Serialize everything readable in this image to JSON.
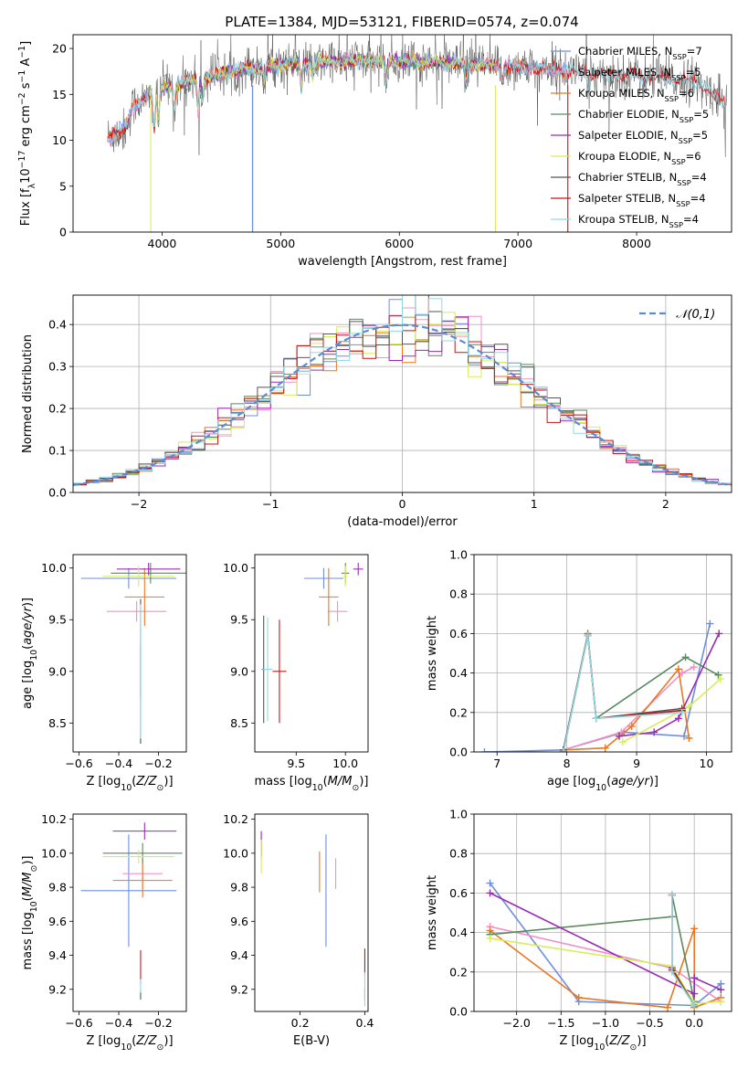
{
  "figure_title": "PLATE=1384, MJD=53121, FIBERID=0574, z=0.074",
  "colors": {
    "chabrier_miles": "#6d8ee0",
    "salpeter_miles": "#f28fc4",
    "kroupa_miles": "#e87722",
    "chabrier_elodie": "#5a8a5e",
    "salpeter_elodie": "#9a2bb5",
    "kroupa_elodie": "#d6ee5a",
    "chabrier_stelib": "#555555",
    "salpeter_stelib": "#c81414",
    "kroupa_stelib": "#8fd8e6",
    "gauss": "#5b8bd6"
  },
  "chart_data": [
    {
      "id": "spectrum",
      "type": "line",
      "xlabel": "wavelength [Angstrom, rest frame]",
      "ylabel": "Flux [f_λ10^−17 erg cm^−2 s^−1 A^−1]",
      "xlim": [
        3250,
        8800
      ],
      "ylim": [
        0,
        21.5
      ],
      "xticks": [
        4000,
        5000,
        6000,
        7000,
        8000
      ],
      "yticks": [
        0,
        5,
        10,
        15,
        20
      ],
      "legend_location": "right",
      "legend": [
        "Chabrier MILES, N_SSP=7",
        "Salpeter MILES, N_SSP=5",
        "Kroupa MILES, N_SSP=6",
        "Chabrier ELODIE, N_SSP=5",
        "Salpeter ELODIE, N_SSP=5",
        "Kroupa ELODIE, N_SSP=6",
        "Chabrier STELIB, N_SSP=4",
        "Salpeter STELIB, N_SSP=4",
        "Kroupa STELIB, N_SSP=4"
      ],
      "continuum": [
        [
          3550,
          10.2
        ],
        [
          3700,
          11.5
        ],
        [
          3750,
          13.5
        ],
        [
          3950,
          15.5
        ],
        [
          4100,
          16.0
        ],
        [
          4400,
          17.0
        ],
        [
          4700,
          17.8
        ],
        [
          5000,
          18.3
        ],
        [
          5300,
          18.5
        ],
        [
          5600,
          18.6
        ],
        [
          6000,
          18.6
        ],
        [
          6500,
          18.4
        ],
        [
          7000,
          18.0
        ],
        [
          7400,
          17.6
        ],
        [
          8000,
          17.0
        ],
        [
          8500,
          16.4
        ],
        [
          8750,
          14.0
        ]
      ]
    },
    {
      "id": "residuals",
      "type": "histogram",
      "xlabel": "(data-model)/error",
      "ylabel": "Normed distribution",
      "xlim": [
        -2.5,
        2.5
      ],
      "ylim": [
        0,
        0.47
      ],
      "xticks": [
        -2,
        -1,
        0,
        1,
        2
      ],
      "yticks": [
        0.0,
        0.1,
        0.2,
        0.3,
        0.4
      ],
      "legend": [
        "𝒩(0,1)"
      ],
      "legend_location": "top-right",
      "grid": true,
      "bin_start": -2.5,
      "bin_width": 0.1
    },
    {
      "id": "age_vs_Z",
      "type": "errorbar",
      "xlabel": "Z [log10(Z/Z⊙)]",
      "ylabel": "age  [log10(age/yr)]",
      "xlim": [
        -0.63,
        -0.06
      ],
      "ylim": [
        8.22,
        10.13
      ],
      "xticks": [
        -0.6,
        -0.4,
        -0.2
      ],
      "yticks": [
        8.5,
        9.0,
        9.5,
        10.0
      ],
      "points": [
        {
          "c": "chabrier_miles",
          "x": -0.35,
          "xe": 0.24,
          "y": 9.9,
          "ye": 0.1
        },
        {
          "c": "salpeter_miles",
          "x": -0.31,
          "xe": 0.15,
          "y": 9.58,
          "ye": 0.1
        },
        {
          "c": "kroupa_miles",
          "x": -0.27,
          "xe": 0.1,
          "y": 9.72,
          "ye": 0.28
        },
        {
          "c": "chabrier_elodie",
          "x": -0.24,
          "xe": 0.2,
          "y": 9.95,
          "ye": 0.1
        },
        {
          "c": "salpeter_elodie",
          "x": -0.25,
          "xe": 0.16,
          "y": 9.99,
          "ye": 0.06
        },
        {
          "c": "kroupa_elodie",
          "x": -0.3,
          "xe": 0.18,
          "y": 9.92,
          "ye": 0.1
        },
        {
          "c": "chabrier_stelib",
          "x": -0.29,
          "xe": 0.0,
          "y": 9.0,
          "ye": 0.7
        },
        {
          "c": "salpeter_stelib",
          "x": -0.29,
          "xe": 0.0,
          "y": 9.0,
          "ye": 0.25
        },
        {
          "c": "kroupa_stelib",
          "x": -0.29,
          "xe": 0.0,
          "y": 9.0,
          "ye": 0.65
        }
      ]
    },
    {
      "id": "age_vs_mass",
      "type": "errorbar",
      "xlabel": "mass [log10(M/M⊙)]",
      "ylabel": "",
      "xlim": [
        9.08,
        10.23
      ],
      "ylim": [
        8.22,
        10.13
      ],
      "xticks": [
        9.5,
        10.0
      ],
      "yticks": [
        8.5,
        9.0,
        9.5,
        10.0
      ],
      "points": [
        {
          "c": "chabrier_miles",
          "x": 9.78,
          "xe": 0.2,
          "y": 9.9,
          "ye": 0.1
        },
        {
          "c": "salpeter_miles",
          "x": 9.92,
          "xe": 0.1,
          "y": 9.58,
          "ye": 0.1
        },
        {
          "c": "kroupa_miles",
          "x": 9.83,
          "xe": 0.1,
          "y": 9.72,
          "ye": 0.28
        },
        {
          "c": "chabrier_elodie",
          "x": 10.0,
          "xe": 0.04,
          "y": 9.95,
          "ye": 0.1
        },
        {
          "c": "salpeter_elodie",
          "x": 10.13,
          "xe": 0.05,
          "y": 9.99,
          "ye": 0.06
        },
        {
          "c": "kroupa_elodie",
          "x": 10.0,
          "xe": 0.02,
          "y": 9.92,
          "ye": 0.1
        },
        {
          "c": "chabrier_stelib",
          "x": 9.17,
          "xe": 0.02,
          "y": 9.02,
          "ye": 0.52
        },
        {
          "c": "salpeter_stelib",
          "x": 9.33,
          "xe": 0.07,
          "y": 9.0,
          "ye": 0.5
        },
        {
          "c": "kroupa_stelib",
          "x": 9.21,
          "xe": 0.05,
          "y": 9.02,
          "ye": 0.5
        }
      ]
    },
    {
      "id": "weight_vs_age",
      "type": "line",
      "xlabel": "age  [log10(age/yr)]",
      "ylabel": "mass weight",
      "xlim": [
        6.67,
        10.36
      ],
      "ylim": [
        0,
        1.0
      ],
      "xticks": [
        7,
        8,
        9,
        10
      ],
      "yticks": [
        0.0,
        0.2,
        0.4,
        0.6,
        0.8,
        1.0
      ],
      "grid": true,
      "series": [
        {
          "c": "chabrier_miles",
          "x": [
            6.82,
            7.95,
            8.82,
            9.68,
            10.05
          ],
          "y": [
            0.0,
            0.01,
            0.1,
            0.08,
            0.65
          ]
        },
        {
          "c": "salpeter_miles",
          "x": [
            7.95,
            8.78,
            9.65,
            9.82
          ],
          "y": [
            0.01,
            0.1,
            0.4,
            0.43
          ]
        },
        {
          "c": "kroupa_miles",
          "x": [
            7.95,
            8.55,
            8.93,
            9.6,
            9.75
          ],
          "y": [
            0.01,
            0.02,
            0.13,
            0.42,
            0.07
          ]
        },
        {
          "c": "chabrier_elodie",
          "x": [
            7.95,
            8.3,
            8.42,
            9.7,
            10.17
          ],
          "y": [
            0.01,
            0.6,
            0.17,
            0.48,
            0.39
          ]
        },
        {
          "c": "salpeter_elodie",
          "x": [
            8.75,
            9.25,
            9.6,
            10.18
          ],
          "y": [
            0.08,
            0.1,
            0.17,
            0.6
          ]
        },
        {
          "c": "kroupa_elodie",
          "x": [
            8.8,
            9.75,
            10.2
          ],
          "y": [
            0.05,
            0.23,
            0.37
          ]
        },
        {
          "c": "chabrier_stelib",
          "x": [
            7.95,
            8.3,
            8.42,
            9.65
          ],
          "y": [
            0.01,
            0.59,
            0.17,
            0.22
          ]
        },
        {
          "c": "salpeter_stelib",
          "x": [
            7.95,
            8.3,
            8.42,
            9.65
          ],
          "y": [
            0.0,
            0.59,
            0.17,
            0.21
          ]
        },
        {
          "c": "kroupa_stelib",
          "x": [
            7.95,
            8.3,
            8.42,
            9.65
          ],
          "y": [
            0.0,
            0.59,
            0.17,
            0.2
          ]
        }
      ]
    },
    {
      "id": "mass_vs_Z",
      "type": "errorbar",
      "xlabel": "Z [log10(Z/Z⊙)]",
      "ylabel": "mass [log10(M/M⊙)]",
      "xlim": [
        -0.63,
        -0.06
      ],
      "ylim": [
        9.07,
        10.23
      ],
      "xticks": [
        -0.6,
        -0.4,
        -0.2
      ],
      "yticks": [
        9.2,
        9.4,
        9.6,
        9.8,
        10.0,
        10.2
      ],
      "points": [
        {
          "c": "chabrier_miles",
          "x": -0.35,
          "xe": 0.24,
          "y": 9.78,
          "ye": 0.33
        },
        {
          "c": "salpeter_miles",
          "x": -0.28,
          "xe": 0.1,
          "y": 9.88,
          "ye": 0.09
        },
        {
          "c": "kroupa_miles",
          "x": -0.28,
          "xe": 0.15,
          "y": 9.84,
          "ye": 0.1
        },
        {
          "c": "chabrier_elodie",
          "x": -0.28,
          "xe": 0.2,
          "y": 10.0,
          "ye": 0.06
        },
        {
          "c": "salpeter_elodie",
          "x": -0.27,
          "xe": 0.16,
          "y": 10.13,
          "ye": 0.05
        },
        {
          "c": "kroupa_elodie",
          "x": -0.3,
          "xe": 0.18,
          "y": 9.98,
          "ye": 0.04
        },
        {
          "c": "chabrier_stelib",
          "x": -0.29,
          "xe": 0.0,
          "y": 9.17,
          "ye": 0.03
        },
        {
          "c": "salpeter_stelib",
          "x": -0.29,
          "xe": 0.0,
          "y": 9.33,
          "ye": 0.1
        },
        {
          "c": "kroupa_stelib",
          "x": -0.29,
          "xe": 0.0,
          "y": 9.22,
          "ye": 0.04
        }
      ]
    },
    {
      "id": "mass_vs_ebv",
      "type": "errorbar",
      "xlabel": "E(B-V)",
      "ylabel": "",
      "xlim": [
        0.06,
        0.41
      ],
      "ylim": [
        9.07,
        10.23
      ],
      "xticks": [
        0.2,
        0.4
      ],
      "yticks": [
        9.2,
        9.4,
        9.6,
        9.8,
        10.0,
        10.2
      ],
      "points": [
        {
          "c": "chabrier_miles",
          "x": 0.28,
          "xe": 0.0,
          "y": 9.78,
          "ye": 0.33
        },
        {
          "c": "salpeter_miles",
          "x": 0.31,
          "xe": 0.0,
          "y": 9.88,
          "ye": 0.09
        },
        {
          "c": "kroupa_miles",
          "x": 0.26,
          "xe": 0.0,
          "y": 9.89,
          "ye": 0.12
        },
        {
          "c": "chabrier_elodie",
          "x": 0.08,
          "xe": 0.0,
          "y": 10.03,
          "ye": 0.06
        },
        {
          "c": "salpeter_elodie",
          "x": 0.08,
          "xe": 0.0,
          "y": 10.06,
          "ye": 0.07
        },
        {
          "c": "kroupa_elodie",
          "x": 0.08,
          "xe": 0.0,
          "y": 9.98,
          "ye": 0.1
        },
        {
          "c": "chabrier_stelib",
          "x": 0.4,
          "xe": 0.0,
          "y": 9.17,
          "ye": 0.03
        },
        {
          "c": "salpeter_stelib",
          "x": 0.4,
          "xe": 0.0,
          "y": 9.36,
          "ye": 0.08
        },
        {
          "c": "kroupa_stelib",
          "x": 0.4,
          "xe": 0.0,
          "y": 9.2,
          "ye": 0.1
        }
      ]
    },
    {
      "id": "weight_vs_Z",
      "type": "line",
      "xlabel": "Z [log10(Z/Z⊙)]",
      "ylabel": "mass weight",
      "xlim": [
        -2.48,
        0.42
      ],
      "ylim": [
        0,
        1.0
      ],
      "xticks": [
        -2.0,
        -1.5,
        -1.0,
        -0.5,
        0.0
      ],
      "yticks": [
        0.0,
        0.2,
        0.4,
        0.6,
        0.8,
        1.0
      ],
      "grid": true,
      "series": [
        {
          "c": "chabrier_miles",
          "x": [
            -2.3,
            -1.3,
            0.0,
            0.3
          ],
          "y": [
            0.65,
            0.05,
            0.03,
            0.14
          ]
        },
        {
          "c": "salpeter_miles",
          "x": [
            -2.3,
            -0.25,
            0.3
          ],
          "y": [
            0.43,
            0.22,
            0.05
          ]
        },
        {
          "c": "kroupa_miles",
          "x": [
            -2.3,
            -1.3,
            -0.3,
            0.0,
            0.0,
            0.3
          ],
          "y": [
            0.41,
            0.07,
            0.02,
            0.42,
            0.02,
            0.07
          ]
        },
        {
          "c": "chabrier_elodie",
          "x": [
            -2.3,
            -0.25,
            -0.25,
            0.0
          ],
          "y": [
            0.39,
            0.48,
            0.59,
            0.05
          ]
        },
        {
          "c": "salpeter_elodie",
          "x": [
            -2.3,
            0.0,
            0.0,
            0.3
          ],
          "y": [
            0.6,
            0.09,
            0.17,
            0.11
          ]
        },
        {
          "c": "kroupa_elodie",
          "x": [
            -2.3,
            -0.25,
            0.0,
            0.3
          ],
          "y": [
            0.37,
            0.23,
            0.04,
            0.05
          ]
        },
        {
          "c": "chabrier_stelib",
          "x": [
            -0.25,
            -0.25,
            0.0
          ],
          "y": [
            0.59,
            0.22,
            0.03
          ]
        },
        {
          "c": "salpeter_stelib",
          "x": [
            -0.25,
            -0.25,
            0.0
          ],
          "y": [
            0.59,
            0.21,
            0.03
          ]
        },
        {
          "c": "kroupa_stelib",
          "x": [
            -0.25,
            -0.25,
            0.0
          ],
          "y": [
            0.59,
            0.2,
            0.03
          ]
        }
      ]
    }
  ]
}
